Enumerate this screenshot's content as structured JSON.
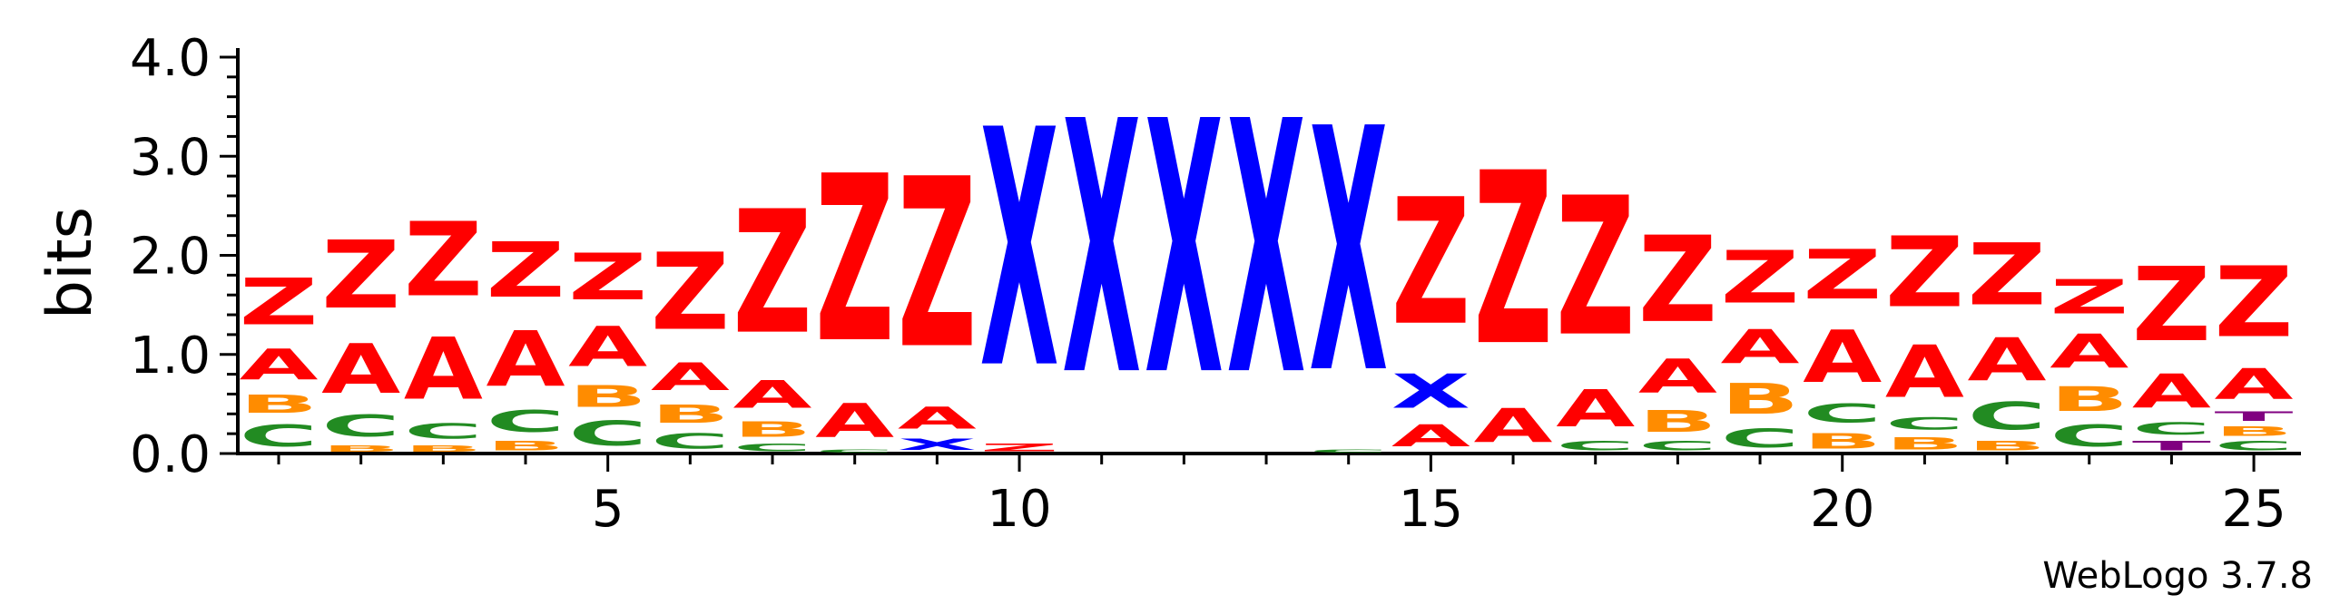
{
  "chart_data": {
    "type": "sequence-logo",
    "title": "",
    "ylabel": "bits",
    "xlabel": "",
    "ylim": [
      0,
      4.0
    ],
    "y_ticks": [
      "0.0",
      "1.0",
      "2.0",
      "3.0",
      "4.0"
    ],
    "x_ticks": [
      "5",
      "10",
      "15",
      "20",
      "25"
    ],
    "x_tick_positions": [
      5,
      10,
      15,
      20,
      25
    ],
    "credit": "WebLogo 3.7.8",
    "colors": {
      "A": "#ff0000",
      "Z": "#ff0000",
      "B": "#ff8c00",
      "C": "#228b22",
      "X": "#0000ff",
      "T": "#800080"
    },
    "positions": [
      {
        "pos": 1,
        "stack": [
          {
            "letter": "C",
            "bits": 0.35
          },
          {
            "letter": "B",
            "bits": 0.3
          },
          {
            "letter": "A",
            "bits": 0.5
          },
          {
            "letter": "Z",
            "bits": 0.75
          }
        ]
      },
      {
        "pos": 2,
        "stack": [
          {
            "letter": "B",
            "bits": 0.1
          },
          {
            "letter": "C",
            "bits": 0.35
          },
          {
            "letter": "A",
            "bits": 0.8
          },
          {
            "letter": "Z",
            "bits": 1.1
          }
        ]
      },
      {
        "pos": 3,
        "stack": [
          {
            "letter": "B",
            "bits": 0.1
          },
          {
            "letter": "C",
            "bits": 0.25
          },
          {
            "letter": "A",
            "bits": 1.0
          },
          {
            "letter": "Z",
            "bits": 1.2
          }
        ]
      },
      {
        "pos": 4,
        "stack": [
          {
            "letter": "B",
            "bits": 0.15
          },
          {
            "letter": "C",
            "bits": 0.35
          },
          {
            "letter": "A",
            "bits": 0.9
          },
          {
            "letter": "Z",
            "bits": 0.9
          }
        ]
      },
      {
        "pos": 5,
        "stack": [
          {
            "letter": "C",
            "bits": 0.4
          },
          {
            "letter": "B",
            "bits": 0.35
          },
          {
            "letter": "A",
            "bits": 0.65
          },
          {
            "letter": "Z",
            "bits": 0.75
          }
        ]
      },
      {
        "pos": 6,
        "stack": [
          {
            "letter": "C",
            "bits": 0.25
          },
          {
            "letter": "B",
            "bits": 0.3
          },
          {
            "letter": "A",
            "bits": 0.45
          },
          {
            "letter": "Z",
            "bits": 1.25
          }
        ]
      },
      {
        "pos": 7,
        "stack": [
          {
            "letter": "C",
            "bits": 0.12
          },
          {
            "letter": "B",
            "bits": 0.25
          },
          {
            "letter": "A",
            "bits": 0.45
          },
          {
            "letter": "Z",
            "bits": 2.0
          }
        ]
      },
      {
        "pos": 8,
        "stack": [
          {
            "letter": "C",
            "bits": 0.05
          },
          {
            "letter": "A",
            "bits": 0.55
          },
          {
            "letter": "Z",
            "bits": 2.7
          }
        ]
      },
      {
        "pos": 9,
        "stack": [
          {
            "letter": "X",
            "bits": 0.18
          },
          {
            "letter": "A",
            "bits": 0.35
          },
          {
            "letter": "Z",
            "bits": 2.75
          }
        ]
      },
      {
        "pos": 10,
        "stack": [
          {
            "letter": "Z",
            "bits": 0.12
          },
          {
            "letter": "X",
            "bits": 3.85
          }
        ]
      },
      {
        "pos": 11,
        "stack": [
          {
            "letter": "X",
            "bits": 4.1
          }
        ]
      },
      {
        "pos": 12,
        "stack": [
          {
            "letter": "X",
            "bits": 4.1
          }
        ]
      },
      {
        "pos": 13,
        "stack": [
          {
            "letter": "X",
            "bits": 4.1
          }
        ]
      },
      {
        "pos": 14,
        "stack": [
          {
            "letter": "C",
            "bits": 0.05
          },
          {
            "letter": "X",
            "bits": 3.95
          }
        ]
      },
      {
        "pos": 15,
        "stack": [
          {
            "letter": "A",
            "bits": 0.35
          },
          {
            "letter": "X",
            "bits": 0.55
          },
          {
            "letter": "Z",
            "bits": 2.05
          }
        ]
      },
      {
        "pos": 16,
        "stack": [
          {
            "letter": "A",
            "bits": 0.55
          },
          {
            "letter": "Z",
            "bits": 2.8
          }
        ]
      },
      {
        "pos": 17,
        "stack": [
          {
            "letter": "C",
            "bits": 0.15
          },
          {
            "letter": "A",
            "bits": 0.6
          },
          {
            "letter": "Z",
            "bits": 2.25
          }
        ]
      },
      {
        "pos": 18,
        "stack": [
          {
            "letter": "C",
            "bits": 0.15
          },
          {
            "letter": "B",
            "bits": 0.35
          },
          {
            "letter": "A",
            "bits": 0.55
          },
          {
            "letter": "Z",
            "bits": 1.4
          }
        ]
      },
      {
        "pos": 19,
        "stack": [
          {
            "letter": "C",
            "bits": 0.3
          },
          {
            "letter": "B",
            "bits": 0.5
          },
          {
            "letter": "A",
            "bits": 0.55
          },
          {
            "letter": "Z",
            "bits": 0.85
          }
        ]
      },
      {
        "pos": 20,
        "stack": [
          {
            "letter": "B",
            "bits": 0.25
          },
          {
            "letter": "C",
            "bits": 0.3
          },
          {
            "letter": "A",
            "bits": 0.85
          },
          {
            "letter": "Z",
            "bits": 0.8
          }
        ]
      },
      {
        "pos": 21,
        "stack": [
          {
            "letter": "B",
            "bits": 0.2
          },
          {
            "letter": "C",
            "bits": 0.2
          },
          {
            "letter": "A",
            "bits": 0.85
          },
          {
            "letter": "Z",
            "bits": 1.15
          }
        ]
      },
      {
        "pos": 22,
        "stack": [
          {
            "letter": "B",
            "bits": 0.15
          },
          {
            "letter": "C",
            "bits": 0.45
          },
          {
            "letter": "A",
            "bits": 0.7
          },
          {
            "letter": "Z",
            "bits": 1.0
          }
        ]
      },
      {
        "pos": 23,
        "stack": [
          {
            "letter": "C",
            "bits": 0.35
          },
          {
            "letter": "B",
            "bits": 0.4
          },
          {
            "letter": "A",
            "bits": 0.55
          },
          {
            "letter": "Z",
            "bits": 0.55
          }
        ]
      },
      {
        "pos": 24,
        "stack": [
          {
            "letter": "T",
            "bits": 0.15
          },
          {
            "letter": "C",
            "bits": 0.2
          },
          {
            "letter": "A",
            "bits": 0.55
          },
          {
            "letter": "Z",
            "bits": 1.2
          }
        ]
      },
      {
        "pos": 25,
        "stack": [
          {
            "letter": "C",
            "bits": 0.15
          },
          {
            "letter": "B",
            "bits": 0.15
          },
          {
            "letter": "T",
            "bits": 0.15
          },
          {
            "letter": "A",
            "bits": 0.5
          },
          {
            "letter": "Z",
            "bits": 1.15
          }
        ]
      }
    ]
  }
}
